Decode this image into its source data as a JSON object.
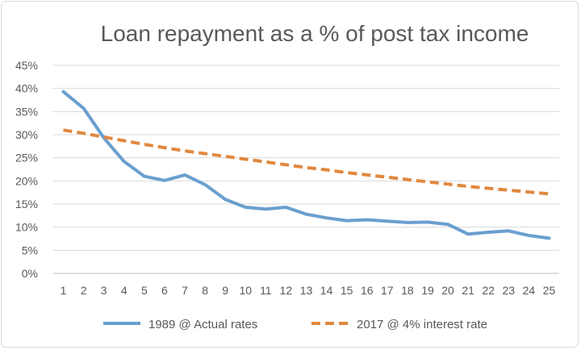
{
  "chart_data": {
    "type": "line",
    "title": "Loan repayment as a % of post tax income",
    "xlabel": "",
    "ylabel": "",
    "x": [
      1,
      2,
      3,
      4,
      5,
      6,
      7,
      8,
      9,
      10,
      11,
      12,
      13,
      14,
      15,
      16,
      17,
      18,
      19,
      20,
      21,
      22,
      23,
      24,
      25
    ],
    "ylim": [
      0,
      45
    ],
    "y_ticks": [
      "0%",
      "5%",
      "10%",
      "15%",
      "20%",
      "25%",
      "30%",
      "35%",
      "40%",
      "45%"
    ],
    "grid": true,
    "legend": "bottom",
    "series": [
      {
        "name": "1989 @ Actual rates",
        "color": "#6a9fcf",
        "style": "solid",
        "values": [
          39.3,
          35.7,
          29.3,
          24.2,
          21.0,
          20.1,
          21.3,
          19.2,
          16.0,
          14.3,
          13.9,
          14.3,
          12.8,
          12.0,
          11.4,
          11.6,
          11.3,
          11.0,
          11.1,
          10.6,
          8.5,
          8.9,
          9.2,
          8.2,
          7.6
        ]
      },
      {
        "name": "2017 @ 4% interest rate",
        "color": "#e0883f",
        "style": "dashed",
        "values": [
          31.0,
          30.3,
          29.5,
          28.7,
          27.9,
          27.2,
          26.5,
          25.9,
          25.3,
          24.7,
          24.1,
          23.5,
          22.9,
          22.4,
          21.8,
          21.3,
          20.8,
          20.3,
          19.8,
          19.3,
          18.8,
          18.4,
          18.0,
          17.6,
          17.2
        ]
      }
    ]
  }
}
